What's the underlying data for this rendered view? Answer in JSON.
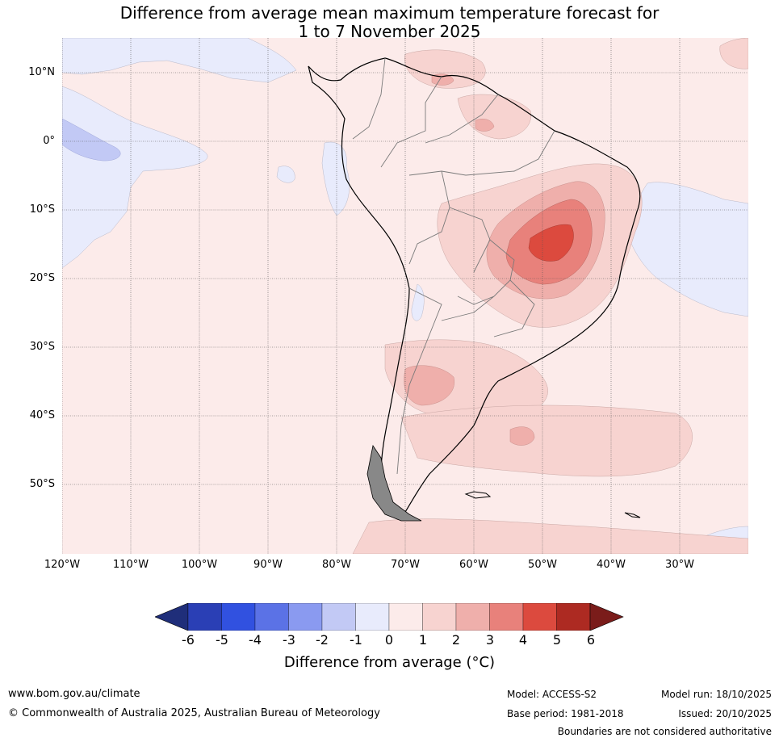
{
  "title": {
    "line1": "Difference from average mean maximum temperature forecast for",
    "line2": "1 to 7 November 2025"
  },
  "axes": {
    "lat_labels": [
      "10°N",
      "0°",
      "10°S",
      "20°S",
      "30°S",
      "40°S",
      "50°S"
    ],
    "lon_labels": [
      "120°W",
      "110°W",
      "100°W",
      "90°W",
      "80°W",
      "70°W",
      "60°W",
      "50°W",
      "40°W",
      "30°W"
    ]
  },
  "colorbar": {
    "ticks": [
      "-6",
      "-5",
      "-4",
      "-3",
      "-2",
      "-1",
      "0",
      "1",
      "2",
      "3",
      "4",
      "5",
      "6"
    ],
    "colors": [
      "#1f2e7a",
      "#2a3fb5",
      "#3151e0",
      "#5b72e6",
      "#8a9af0",
      "#c2c9f5",
      "#e8ebfc",
      "#fcebea",
      "#f7d3d0",
      "#efafab",
      "#e8817b",
      "#dc4a3e",
      "#ad2a22",
      "#7a1c1a"
    ],
    "label": "Difference from average (°C)"
  },
  "footer": {
    "website": "www.bom.gov.au/climate",
    "copyright": "© Commonwealth of Australia 2025, Australian Bureau of Meteorology",
    "model": "Model: ACCESS-S2",
    "base_period": "Base period: 1981-2018",
    "model_run": "Model run: 18/10/2025",
    "issued": "Issued: 20/10/2025",
    "disclaimer": "Boundaries are not considered authoritative"
  }
}
